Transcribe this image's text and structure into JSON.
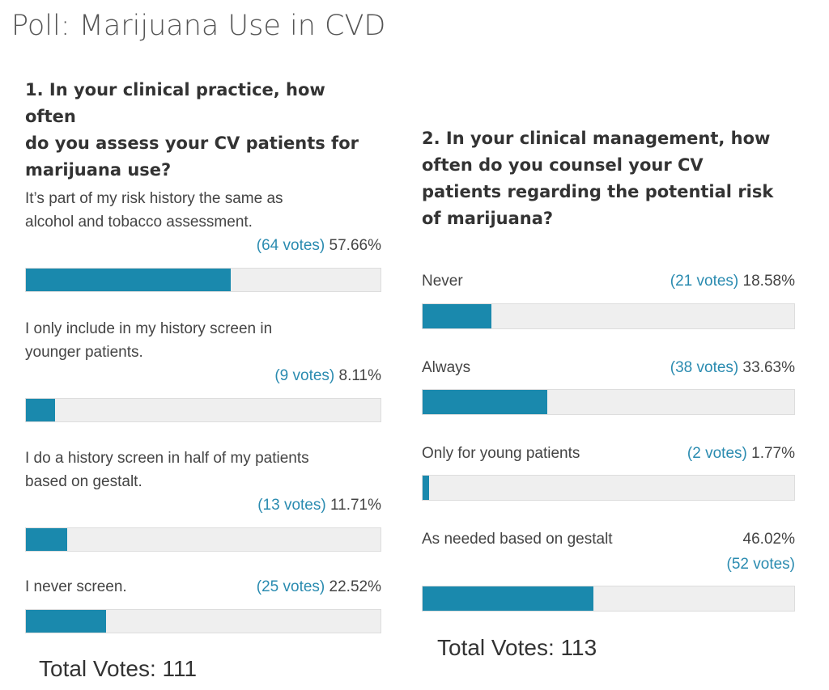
{
  "title": "Poll: Marijuana Use in CVD",
  "polls": [
    {
      "question": [
        "1. In your clinical practice, how often",
        "do you assess your CV patients for",
        "marijuana use?"
      ],
      "options": [
        {
          "label": [
            "It’s part of my risk history the same as",
            "alcohol and tobacco assessment."
          ],
          "votes": "(64 votes)",
          "percent": "57.66%",
          "value": 57.66
        },
        {
          "label": [
            "I only include in my history screen in",
            "younger patients."
          ],
          "votes": "(9 votes)",
          "percent": "8.11%",
          "value": 8.11
        },
        {
          "label": [
            "I do a history screen in half of my patients",
            "based on gestalt."
          ],
          "votes": "(13 votes)",
          "percent": "11.71%",
          "value": 11.71
        },
        {
          "label": [
            "I never screen."
          ],
          "votes": "(25 votes)",
          "percent": "22.52%",
          "value": 22.52
        }
      ],
      "total": "Total Votes: 111"
    },
    {
      "question": [
        "2. In your clinical management, how",
        "often do you counsel your CV",
        "patients regarding the potential risk",
        "of marijuana?"
      ],
      "options": [
        {
          "label": [
            "Never"
          ],
          "votes": "(21 votes)",
          "percent": "18.58%",
          "value": 18.58
        },
        {
          "label": [
            "Always"
          ],
          "votes": "(38 votes)",
          "percent": "33.63%",
          "value": 33.63
        },
        {
          "label": [
            "Only for young patients"
          ],
          "votes": "(2 votes)",
          "percent": "1.77%",
          "value": 1.77
        },
        {
          "label": [
            "As needed based on gestalt"
          ],
          "votes": "(52 votes)",
          "percent": "46.02%",
          "value": 46.02
        }
      ],
      "total": "Total Votes: 113"
    }
  ],
  "colors": {
    "bar_fill": "#1a89ad",
    "bar_bg": "#efefef",
    "votes": "#2a8bb0"
  }
}
